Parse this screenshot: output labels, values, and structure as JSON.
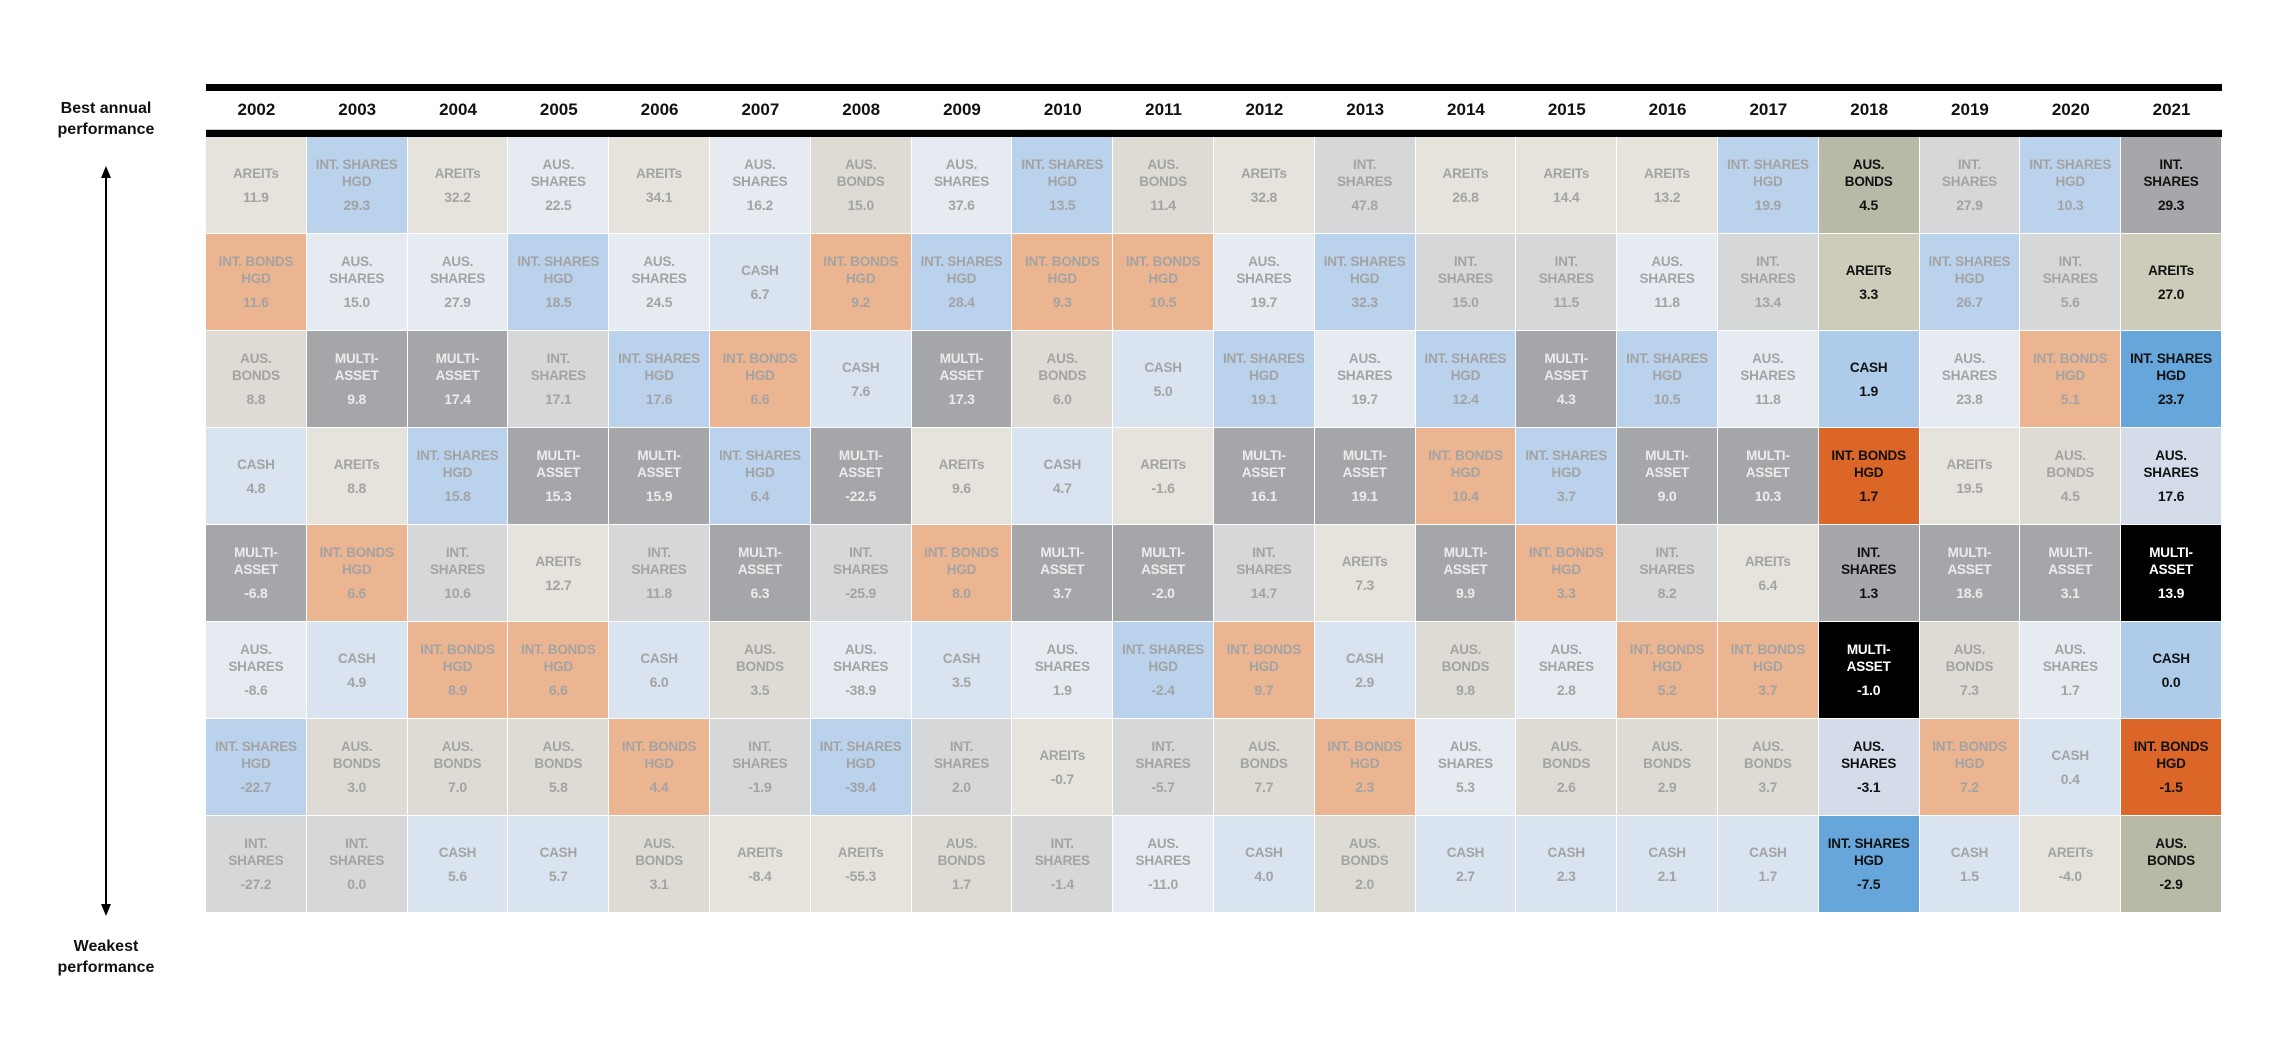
{
  "side_labels": {
    "top": "Best annual performance",
    "bottom": "Weakest performance"
  },
  "asset_labels": {
    "AREITs": "AREITs",
    "AUS_SHARES": "AUS.\nSHARES",
    "AUS_BONDS": "AUS.\nBONDS",
    "INT_SHARES": "INT.\nSHARES",
    "INT_SHARES_HGD": "INT. SHARES\nHGD",
    "INT_BONDS_HGD": "INT. BONDS\nHGD",
    "CASH": "CASH",
    "MULTI_ASSET": "MULTI-\nASSET"
  },
  "colors": {
    "normal": {
      "AREITs": "#e6e3dc",
      "AUS_SHARES": "#e6ebf2",
      "AUS_BONDS": "#dedbd4",
      "INT_SHARES": "#d6d7d9",
      "INT_SHARES_HGD": "#bad2ec",
      "INT_BONDS_HGD": "#ebb591",
      "CASH": "#d9e4f0",
      "MULTI_ASSET": "#a5a6a9"
    },
    "highlight": {
      "AREITs": "#cdcbb9",
      "AUS_SHARES": "#d3dce8",
      "AUS_BONDS": "#b8b9a6",
      "INT_SHARES": "#a6a7aa",
      "INT_SHARES_HGD": "#66a6da",
      "INT_BONDS_HGD": "#dc6628",
      "CASH": "#aecbea",
      "MULTI_ASSET": "#000000"
    },
    "text_faded": "#a3a3a3",
    "text_faded_on_dark": "#ececec",
    "text_highlight": "#111111",
    "text_highlight_on_dark": "#ffffff"
  },
  "chart_data": {
    "type": "table",
    "title": "",
    "highlighted_years": [
      "2018",
      "2021"
    ],
    "columns": [
      {
        "year": "2002",
        "cells": [
          [
            "AREITs",
            "11.9"
          ],
          [
            "INT_BONDS_HGD",
            "11.6"
          ],
          [
            "AUS_BONDS",
            "8.8"
          ],
          [
            "CASH",
            "4.8"
          ],
          [
            "MULTI_ASSET",
            "-6.8"
          ],
          [
            "AUS_SHARES",
            "-8.6"
          ],
          [
            "INT_SHARES_HGD",
            "-22.7"
          ],
          [
            "INT_SHARES",
            "-27.2"
          ]
        ]
      },
      {
        "year": "2003",
        "cells": [
          [
            "INT_SHARES_HGD",
            "29.3"
          ],
          [
            "AUS_SHARES",
            "15.0"
          ],
          [
            "MULTI_ASSET",
            "9.8"
          ],
          [
            "AREITs",
            "8.8"
          ],
          [
            "INT_BONDS_HGD",
            "6.6"
          ],
          [
            "CASH",
            "4.9"
          ],
          [
            "AUS_BONDS",
            "3.0"
          ],
          [
            "INT_SHARES",
            "0.0"
          ]
        ]
      },
      {
        "year": "2004",
        "cells": [
          [
            "AREITs",
            "32.2"
          ],
          [
            "AUS_SHARES",
            "27.9"
          ],
          [
            "MULTI_ASSET",
            "17.4"
          ],
          [
            "INT_SHARES_HGD",
            "15.8"
          ],
          [
            "INT_SHARES",
            "10.6"
          ],
          [
            "INT_BONDS_HGD",
            "8.9"
          ],
          [
            "AUS_BONDS",
            "7.0"
          ],
          [
            "CASH",
            "5.6"
          ]
        ]
      },
      {
        "year": "2005",
        "cells": [
          [
            "AUS_SHARES",
            "22.5"
          ],
          [
            "INT_SHARES_HGD",
            "18.5"
          ],
          [
            "INT_SHARES",
            "17.1"
          ],
          [
            "MULTI_ASSET",
            "15.3"
          ],
          [
            "AREITs",
            "12.7"
          ],
          [
            "INT_BONDS_HGD",
            "6.6"
          ],
          [
            "AUS_BONDS",
            "5.8"
          ],
          [
            "CASH",
            "5.7"
          ]
        ]
      },
      {
        "year": "2006",
        "cells": [
          [
            "AREITs",
            "34.1"
          ],
          [
            "AUS_SHARES",
            "24.5"
          ],
          [
            "INT_SHARES_HGD",
            "17.6"
          ],
          [
            "MULTI_ASSET",
            "15.9"
          ],
          [
            "INT_SHARES",
            "11.8"
          ],
          [
            "CASH",
            "6.0"
          ],
          [
            "INT_BONDS_HGD",
            "4.4"
          ],
          [
            "AUS_BONDS",
            "3.1"
          ]
        ]
      },
      {
        "year": "2007",
        "cells": [
          [
            "AUS_SHARES",
            "16.2"
          ],
          [
            "CASH",
            "6.7"
          ],
          [
            "INT_BONDS_HGD",
            "6.6"
          ],
          [
            "INT_SHARES_HGD",
            "6.4"
          ],
          [
            "MULTI_ASSET",
            "6.3"
          ],
          [
            "AUS_BONDS",
            "3.5"
          ],
          [
            "INT_SHARES",
            "-1.9"
          ],
          [
            "AREITs",
            "-8.4"
          ]
        ]
      },
      {
        "year": "2008",
        "cells": [
          [
            "AUS_BONDS",
            "15.0"
          ],
          [
            "INT_BONDS_HGD",
            "9.2"
          ],
          [
            "CASH",
            "7.6"
          ],
          [
            "MULTI_ASSET",
            "-22.5"
          ],
          [
            "INT_SHARES",
            "-25.9"
          ],
          [
            "AUS_SHARES",
            "-38.9"
          ],
          [
            "INT_SHARES_HGD",
            "-39.4"
          ],
          [
            "AREITs",
            "-55.3"
          ]
        ]
      },
      {
        "year": "2009",
        "cells": [
          [
            "AUS_SHARES",
            "37.6"
          ],
          [
            "INT_SHARES_HGD",
            "28.4"
          ],
          [
            "MULTI_ASSET",
            "17.3"
          ],
          [
            "AREITs",
            "9.6"
          ],
          [
            "INT_BONDS_HGD",
            "8.0"
          ],
          [
            "CASH",
            "3.5"
          ],
          [
            "INT_SHARES",
            "2.0"
          ],
          [
            "AUS_BONDS",
            "1.7"
          ]
        ]
      },
      {
        "year": "2010",
        "cells": [
          [
            "INT_SHARES_HGD",
            "13.5"
          ],
          [
            "INT_BONDS_HGD",
            "9.3"
          ],
          [
            "AUS_BONDS",
            "6.0"
          ],
          [
            "CASH",
            "4.7"
          ],
          [
            "MULTI_ASSET",
            "3.7"
          ],
          [
            "AUS_SHARES",
            "1.9"
          ],
          [
            "AREITs",
            "-0.7"
          ],
          [
            "INT_SHARES",
            "-1.4"
          ]
        ]
      },
      {
        "year": "2011",
        "cells": [
          [
            "AUS_BONDS",
            "11.4"
          ],
          [
            "INT_BONDS_HGD",
            "10.5"
          ],
          [
            "CASH",
            "5.0"
          ],
          [
            "AREITs",
            "-1.6"
          ],
          [
            "MULTI_ASSET",
            "-2.0"
          ],
          [
            "INT_SHARES_HGD",
            "-2.4"
          ],
          [
            "INT_SHARES",
            "-5.7"
          ],
          [
            "AUS_SHARES",
            "-11.0"
          ]
        ]
      },
      {
        "year": "2012",
        "cells": [
          [
            "AREITs",
            "32.8"
          ],
          [
            "AUS_SHARES",
            "19.7"
          ],
          [
            "INT_SHARES_HGD",
            "19.1"
          ],
          [
            "MULTI_ASSET",
            "16.1"
          ],
          [
            "INT_SHARES",
            "14.7"
          ],
          [
            "INT_BONDS_HGD",
            "9.7"
          ],
          [
            "AUS_BONDS",
            "7.7"
          ],
          [
            "CASH",
            "4.0"
          ]
        ]
      },
      {
        "year": "2013",
        "cells": [
          [
            "INT_SHARES",
            "47.8"
          ],
          [
            "INT_SHARES_HGD",
            "32.3"
          ],
          [
            "AUS_SHARES",
            "19.7"
          ],
          [
            "MULTI_ASSET",
            "19.1"
          ],
          [
            "AREITs",
            "7.3"
          ],
          [
            "CASH",
            "2.9"
          ],
          [
            "INT_BONDS_HGD",
            "2.3"
          ],
          [
            "AUS_BONDS",
            "2.0"
          ]
        ]
      },
      {
        "year": "2014",
        "cells": [
          [
            "AREITs",
            "26.8"
          ],
          [
            "INT_SHARES",
            "15.0"
          ],
          [
            "INT_SHARES_HGD",
            "12.4"
          ],
          [
            "INT_BONDS_HGD",
            "10.4"
          ],
          [
            "MULTI_ASSET",
            "9.9"
          ],
          [
            "AUS_BONDS",
            "9.8"
          ],
          [
            "AUS_SHARES",
            "5.3"
          ],
          [
            "CASH",
            "2.7"
          ]
        ]
      },
      {
        "year": "2015",
        "cells": [
          [
            "AREITs",
            "14.4"
          ],
          [
            "INT_SHARES",
            "11.5"
          ],
          [
            "MULTI_ASSET",
            "4.3"
          ],
          [
            "INT_SHARES_HGD",
            "3.7"
          ],
          [
            "INT_BONDS_HGD",
            "3.3"
          ],
          [
            "AUS_SHARES",
            "2.8"
          ],
          [
            "AUS_BONDS",
            "2.6"
          ],
          [
            "CASH",
            "2.3"
          ]
        ]
      },
      {
        "year": "2016",
        "cells": [
          [
            "AREITs",
            "13.2"
          ],
          [
            "AUS_SHARES",
            "11.8"
          ],
          [
            "INT_SHARES_HGD",
            "10.5"
          ],
          [
            "MULTI_ASSET",
            "9.0"
          ],
          [
            "INT_SHARES",
            "8.2"
          ],
          [
            "INT_BONDS_HGD",
            "5.2"
          ],
          [
            "AUS_BONDS",
            "2.9"
          ],
          [
            "CASH",
            "2.1"
          ]
        ]
      },
      {
        "year": "2017",
        "cells": [
          [
            "INT_SHARES_HGD",
            "19.9"
          ],
          [
            "INT_SHARES",
            "13.4"
          ],
          [
            "AUS_SHARES",
            "11.8"
          ],
          [
            "MULTI_ASSET",
            "10.3"
          ],
          [
            "AREITs",
            "6.4"
          ],
          [
            "INT_BONDS_HGD",
            "3.7"
          ],
          [
            "AUS_BONDS",
            "3.7"
          ],
          [
            "CASH",
            "1.7"
          ]
        ]
      },
      {
        "year": "2018",
        "cells": [
          [
            "AUS_BONDS",
            "4.5"
          ],
          [
            "AREITs",
            "3.3"
          ],
          [
            "CASH",
            "1.9"
          ],
          [
            "INT_BONDS_HGD",
            "1.7"
          ],
          [
            "INT_SHARES",
            "1.3"
          ],
          [
            "MULTI_ASSET",
            "-1.0"
          ],
          [
            "AUS_SHARES",
            "-3.1"
          ],
          [
            "INT_SHARES_HGD",
            "-7.5"
          ]
        ]
      },
      {
        "year": "2019",
        "cells": [
          [
            "INT_SHARES",
            "27.9"
          ],
          [
            "INT_SHARES_HGD",
            "26.7"
          ],
          [
            "AUS_SHARES",
            "23.8"
          ],
          [
            "AREITs",
            "19.5"
          ],
          [
            "MULTI_ASSET",
            "18.6"
          ],
          [
            "AUS_BONDS",
            "7.3"
          ],
          [
            "INT_BONDS_HGD",
            "7.2"
          ],
          [
            "CASH",
            "1.5"
          ]
        ]
      },
      {
        "year": "2020",
        "cells": [
          [
            "INT_SHARES_HGD",
            "10.3"
          ],
          [
            "INT_SHARES",
            "5.6"
          ],
          [
            "INT_BONDS_HGD",
            "5.1"
          ],
          [
            "AUS_BONDS",
            "4.5"
          ],
          [
            "MULTI_ASSET",
            "3.1"
          ],
          [
            "AUS_SHARES",
            "1.7"
          ],
          [
            "CASH",
            "0.4"
          ],
          [
            "AREITs",
            "-4.0"
          ]
        ]
      },
      {
        "year": "2021",
        "cells": [
          [
            "INT_SHARES",
            "29.3"
          ],
          [
            "AREITs",
            "27.0"
          ],
          [
            "INT_SHARES_HGD",
            "23.7"
          ],
          [
            "AUS_SHARES",
            "17.6"
          ],
          [
            "MULTI_ASSET",
            "13.9"
          ],
          [
            "CASH",
            "0.0"
          ],
          [
            "INT_BONDS_HGD",
            "-1.5"
          ],
          [
            "AUS_BONDS",
            "-2.9"
          ]
        ]
      }
    ]
  }
}
